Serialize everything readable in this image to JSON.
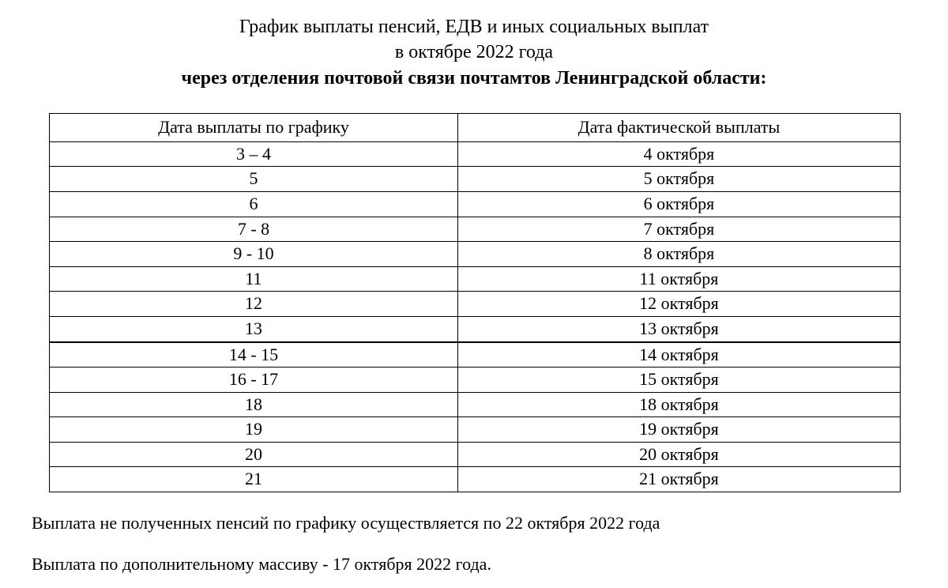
{
  "title": {
    "line1": "График выплаты пенсий, ЕДВ и иных социальных выплат",
    "line2": "в октябре  2022  года",
    "line3": "через отделения почтовой связи  почтамтов Ленинградской области:"
  },
  "table": {
    "columns": [
      "Дата выплаты по графику",
      "Дата фактической выплаты"
    ],
    "rows": [
      [
        "3 – 4",
        "4 октября"
      ],
      [
        "5",
        "5 октября"
      ],
      [
        "6",
        "6 октября"
      ],
      [
        "7 - 8",
        "7 октября"
      ],
      [
        "9 - 10",
        "8 октября"
      ],
      [
        "11",
        "11 октября"
      ],
      [
        "12",
        "12 октября"
      ],
      [
        "13",
        "13 октября"
      ],
      [
        "14 - 15",
        "14 октября"
      ],
      [
        "16 - 17",
        "15 октября"
      ],
      [
        "18",
        "18 октября"
      ],
      [
        "19",
        "19 октября"
      ],
      [
        "20",
        "20 октября"
      ],
      [
        "21",
        "21 октября"
      ]
    ],
    "thick_row_index": 8,
    "column_widths_pct": [
      48,
      52
    ],
    "border_color": "#000000",
    "cell_fontsize": 22
  },
  "notes": {
    "note1": "Выплата не полученных пенсий по графику осуществляется по  22 октября 2022 года",
    "note2": "Выплата по дополнительному массиву - 17 октября  2022 года."
  },
  "style": {
    "background_color": "#ffffff",
    "text_color": "#000000",
    "font_family": "Times New Roman",
    "title_fontsize": 24,
    "body_fontsize": 22
  }
}
